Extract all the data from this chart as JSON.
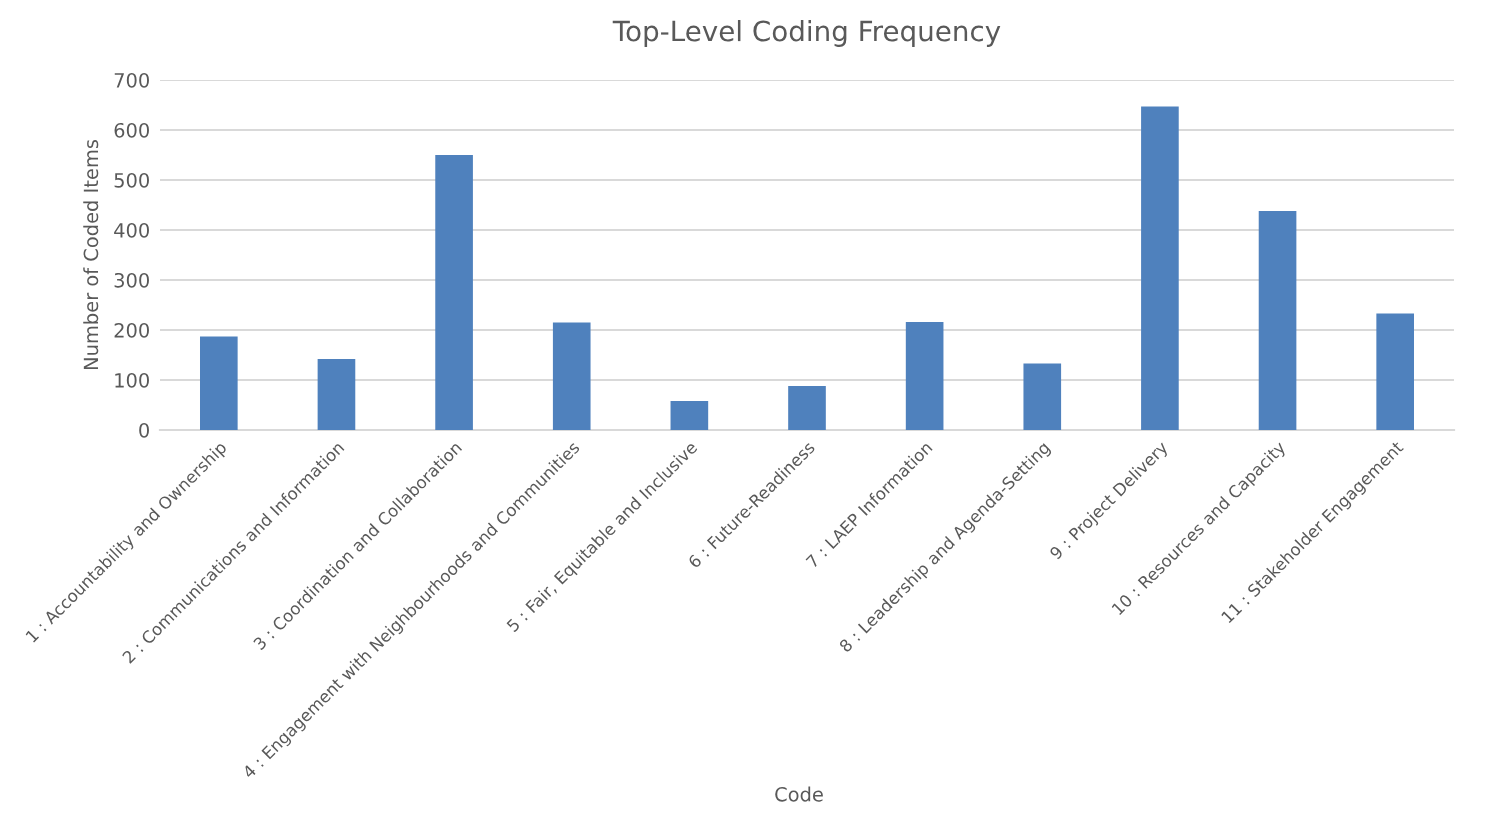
{
  "chart_data": {
    "type": "bar",
    "title": "Top-Level Coding Frequency",
    "xlabel": "Code",
    "ylabel": "Number of Coded Items",
    "categories": [
      "1 : Accountability and Ownership",
      "2 : Communications and Information",
      "3 : Coordination and Collaboration",
      "4 : Engagement with Neighbourhoods and Communities",
      "5 : Fair, Equitable and Inclusive",
      "6 : Future-Readiness",
      "7 : LAEP Information",
      "8 : Leadership and Agenda-Setting",
      "9 : Project Delivery",
      "10 : Resources and Capacity",
      "11 : Stakeholder Engagement"
    ],
    "values": [
      187,
      142,
      550,
      215,
      58,
      88,
      216,
      133,
      647,
      438,
      233
    ],
    "color": "#4f81bd",
    "ylim": [
      0,
      700
    ],
    "yticks": [
      0,
      100,
      200,
      300,
      400,
      500,
      600,
      700
    ],
    "grid": "y",
    "legend": false
  }
}
